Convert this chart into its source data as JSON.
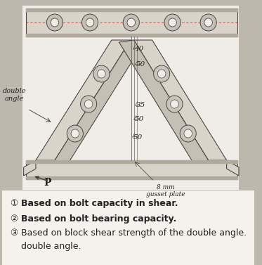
{
  "bg_color": "#bdb8ae",
  "diagram_bg": "#dbd6cc",
  "white_bg": "#f0ede8",
  "items": [
    {
      "num": "①",
      "text": "Based on bolt capacity in shear.",
      "bold": true
    },
    {
      "num": "②",
      "text": "Based on bolt bearing capacity.",
      "bold": true
    },
    {
      "num": "③",
      "text": "Based on block shear strength of the double angle.",
      "bold": false
    }
  ],
  "dim_labels": [
    "40",
    "50",
    "35",
    "50",
    "50"
  ],
  "label_double_angle": "double\nangle",
  "label_gusset": "8 mm\ngusset plate",
  "label_P": "P"
}
